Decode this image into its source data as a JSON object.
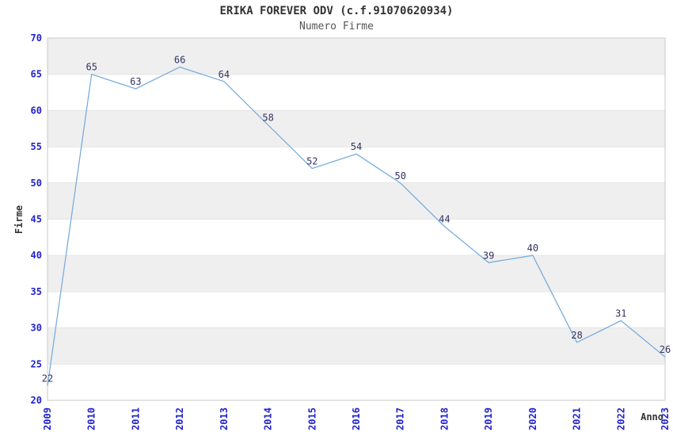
{
  "header": {
    "title": "ERIKA FOREVER ODV (c.f.91070620934)",
    "subtitle": "Numero Firme"
  },
  "chart_data": {
    "type": "line",
    "title": "ERIKA FOREVER ODV (c.f.91070620934)",
    "subtitle": "Numero Firme",
    "xlabel": "Anno",
    "ylabel": "Firme",
    "categories": [
      "2009",
      "2010",
      "2011",
      "2012",
      "2013",
      "2014",
      "2015",
      "2016",
      "2017",
      "2018",
      "2019",
      "2020",
      "2021",
      "2022",
      "2023"
    ],
    "values": [
      22,
      65,
      63,
      66,
      64,
      58,
      52,
      54,
      50,
      44,
      39,
      40,
      28,
      31,
      26
    ],
    "ylim": [
      20,
      70
    ],
    "y_ticks": [
      20,
      25,
      30,
      35,
      40,
      45,
      50,
      55,
      60,
      65,
      70
    ],
    "grid": "horizontal",
    "banding": "alternating-gray-from-top",
    "legend": "none",
    "markers": "none",
    "colors": {
      "line": "#7aaddd",
      "tick_labels": "#2222cc",
      "data_labels": "#333366",
      "band": "#efefef",
      "gridline": "#d9d9d9",
      "border": "#c9c9c9",
      "title": "#333333",
      "subtitle": "#555555",
      "axis_title": "#333333",
      "background": "#ffffff"
    }
  }
}
